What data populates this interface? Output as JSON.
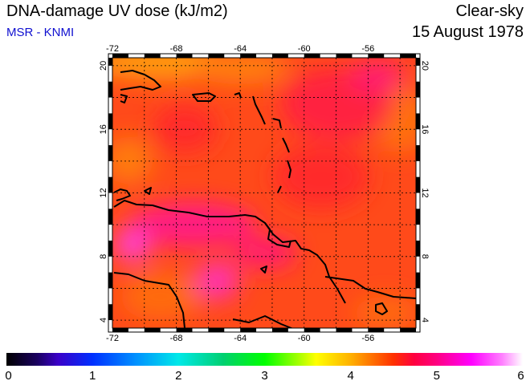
{
  "header": {
    "title": "DNA-damage UV dose (kJ/m2)",
    "source": "MSR - KNMI",
    "condition": "Clear-sky",
    "date": "15 August 1978"
  },
  "map": {
    "region": "Caribbean / Lesser Antilles / northern South America",
    "lon_range": [
      -72,
      -53
    ],
    "lat_range": [
      3.5,
      20.5
    ],
    "lon_ticks": [
      "-72",
      "-68",
      "-64",
      "-60",
      "-56"
    ],
    "lat_ticks": [
      "4",
      "8",
      "12",
      "16",
      "20"
    ],
    "grid": true,
    "field_colors": {
      "background": "#ff4a1a",
      "orange": "#ff8a10",
      "red": "#ff2a2a",
      "magenta": "#ff1f80",
      "pink": "#ff40c0"
    }
  },
  "colorbar": {
    "min": 0,
    "max": 6,
    "labels": [
      "0",
      "1",
      "2",
      "3",
      "4",
      "5",
      "6"
    ]
  }
}
